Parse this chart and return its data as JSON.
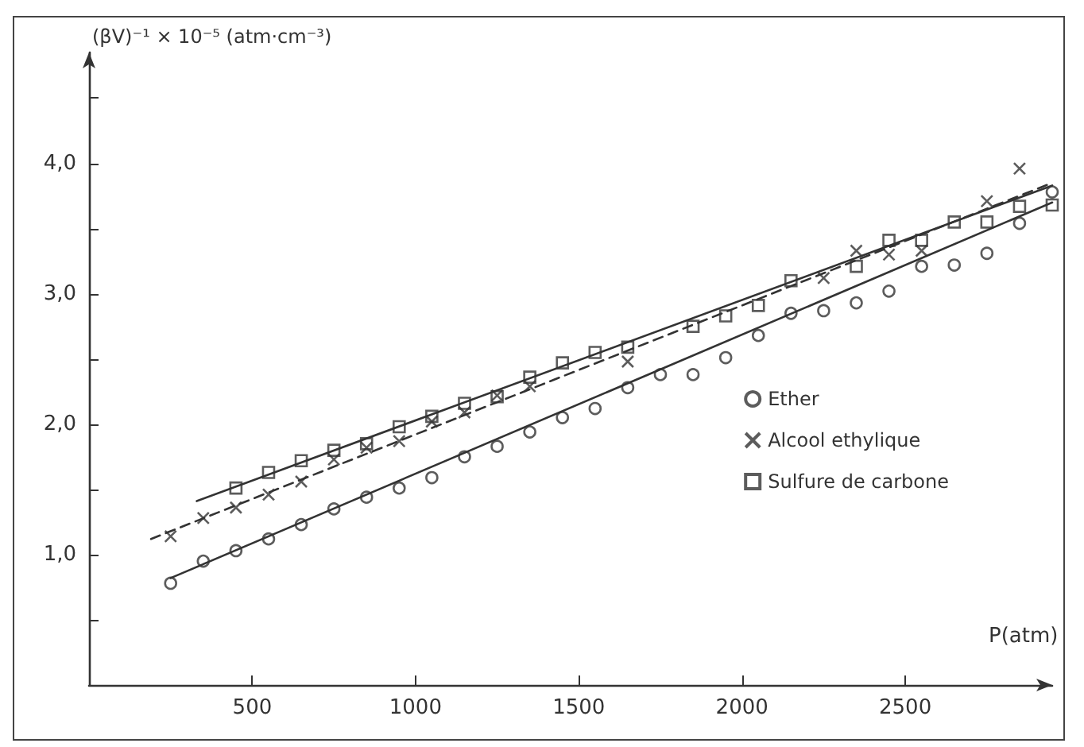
{
  "chart_data": {
    "type": "scatter",
    "xlabel": "P(atm)",
    "ylabel": "(βV)⁻¹ × 10⁻⁵ (atm·cm⁻³)",
    "xlim": [
      0,
      2950
    ],
    "ylim": [
      0,
      4.85
    ],
    "xticks": [
      500,
      1000,
      1500,
      2000,
      2500
    ],
    "yticks": [
      {
        "value": 0.5,
        "label": null
      },
      {
        "value": 1,
        "label": "1,0"
      },
      {
        "value": 1.5,
        "label": null
      },
      {
        "value": 2,
        "label": "2,0"
      },
      {
        "value": 2.5,
        "label": null
      },
      {
        "value": 3,
        "label": "3,0"
      },
      {
        "value": 3.5,
        "label": null
      },
      {
        "value": 4,
        "label": "4,0"
      },
      {
        "value": 4.5,
        "label": null
      }
    ],
    "grid": false,
    "legend": "right",
    "series": [
      {
        "name": "Ether",
        "marker": "circle",
        "color": "#333333",
        "x": [
          250,
          350,
          450,
          550,
          650,
          750,
          850,
          950,
          1050,
          1150,
          1250,
          1350,
          1450,
          1550,
          1650,
          1750,
          1850,
          1950,
          2050,
          2150,
          2250,
          2350,
          2450,
          2550,
          2650,
          2750,
          2850,
          2950
        ],
        "values": [
          0.78,
          0.95,
          1.03,
          1.12,
          1.23,
          1.35,
          1.44,
          1.51,
          1.59,
          1.75,
          1.83,
          1.94,
          2.05,
          2.12,
          2.28,
          2.38,
          2.38,
          2.51,
          2.68,
          2.85,
          2.87,
          2.93,
          3.02,
          3.21,
          3.22,
          3.31,
          3.54,
          3.78
        ]
      },
      {
        "name": "Alcool ethylique",
        "marker": "cross",
        "color": "#333333",
        "x": [
          250,
          350,
          450,
          550,
          650,
          750,
          850,
          950,
          1050,
          1150,
          1250,
          1350,
          1650,
          2250,
          2350,
          2450,
          2550,
          2750,
          2850
        ],
        "values": [
          1.14,
          1.28,
          1.36,
          1.46,
          1.56,
          1.73,
          1.82,
          1.87,
          2.02,
          2.09,
          2.22,
          2.29,
          2.48,
          3.12,
          3.33,
          3.3,
          3.33,
          3.71,
          3.96
        ]
      },
      {
        "name": "Sulfure de carbone",
        "marker": "square",
        "color": "#333333",
        "x": [
          450,
          550,
          650,
          750,
          850,
          950,
          1050,
          1150,
          1250,
          1350,
          1450,
          1550,
          1650,
          1850,
          1950,
          2050,
          2150,
          2350,
          2450,
          2550,
          2650,
          2750,
          2850,
          2950
        ],
        "values": [
          1.51,
          1.63,
          1.72,
          1.8,
          1.85,
          1.98,
          2.06,
          2.16,
          2.21,
          2.36,
          2.47,
          2.55,
          2.59,
          2.75,
          2.83,
          2.91,
          3.1,
          3.21,
          3.41,
          3.41,
          3.55,
          3.55,
          3.67,
          3.68
        ]
      },
      {
        "type": "line",
        "marker": "none",
        "line_style": "solid",
        "color": "#333333",
        "x": [
          250,
          2950
        ],
        "values": [
          0.82,
          3.7
        ]
      },
      {
        "type": "line",
        "marker": "none",
        "line_style": "dashed",
        "color": "#333333",
        "x": [
          190,
          2950
        ],
        "values": [
          1.12,
          3.85
        ]
      },
      {
        "type": "line",
        "marker": "none",
        "line_style": "solid",
        "color": "#333333",
        "x": [
          330,
          2950
        ],
        "values": [
          1.41,
          3.83
        ]
      }
    ]
  }
}
